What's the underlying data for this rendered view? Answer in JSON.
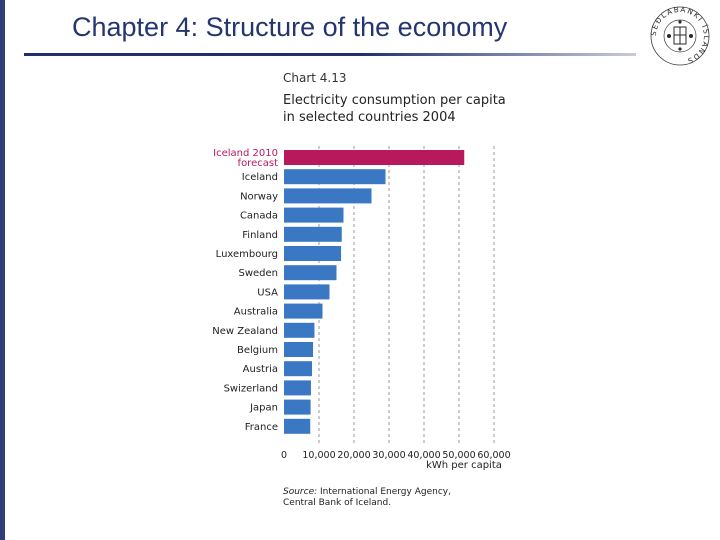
{
  "slide": {
    "title": "Chapter 4: Structure of the economy"
  },
  "logo": {
    "ring_text": "SEÐLABANKI ÍSLANDS"
  },
  "chart_label": "Chart 4.13",
  "chart_title": "Electricity consumption per capita in selected countries 2004",
  "source_prefix": "Source:",
  "source_text": "International Energy Agency, Central Bank of Iceland.",
  "colors": {
    "bar": "#3a78c4",
    "highlight": "#b8195c",
    "grid": "#9a9a9a",
    "title": "#253570"
  },
  "chart_data": {
    "type": "bar",
    "orientation": "horizontal",
    "title": "Electricity consumption per capita in selected countries 2004",
    "xlabel": "kWh per capita",
    "ylabel": "",
    "xlim": [
      0,
      60000
    ],
    "xticks": [
      0,
      10000,
      20000,
      30000,
      40000,
      50000,
      60000
    ],
    "xtick_labels": [
      "0",
      "10,000",
      "20,000",
      "30,000",
      "40,000",
      "50,000",
      "60,000"
    ],
    "grid": true,
    "categories": [
      "Iceland 2010 forecast",
      "Iceland",
      "Norway",
      "Canada",
      "Finland",
      "Luxembourg",
      "Sweden",
      "USA",
      "Australia",
      "New Zealand",
      "Belgium",
      "Austria",
      "Swizerland",
      "Japan",
      "France"
    ],
    "category_lines": [
      [
        "Iceland 2010",
        "forecast"
      ],
      [
        "Iceland"
      ],
      [
        "Norway"
      ],
      [
        "Canada"
      ],
      [
        "Finland"
      ],
      [
        "Luxembourg"
      ],
      [
        "Sweden"
      ],
      [
        "USA"
      ],
      [
        "Australia"
      ],
      [
        "New Zealand"
      ],
      [
        "Belgium"
      ],
      [
        "Austria"
      ],
      [
        "Swizerland"
      ],
      [
        "Japan"
      ],
      [
        "France"
      ]
    ],
    "values": [
      51500,
      29000,
      25000,
      17000,
      16500,
      16300,
      15000,
      13000,
      11000,
      8700,
      8300,
      8000,
      7700,
      7600,
      7500
    ],
    "highlight_index": 0
  }
}
